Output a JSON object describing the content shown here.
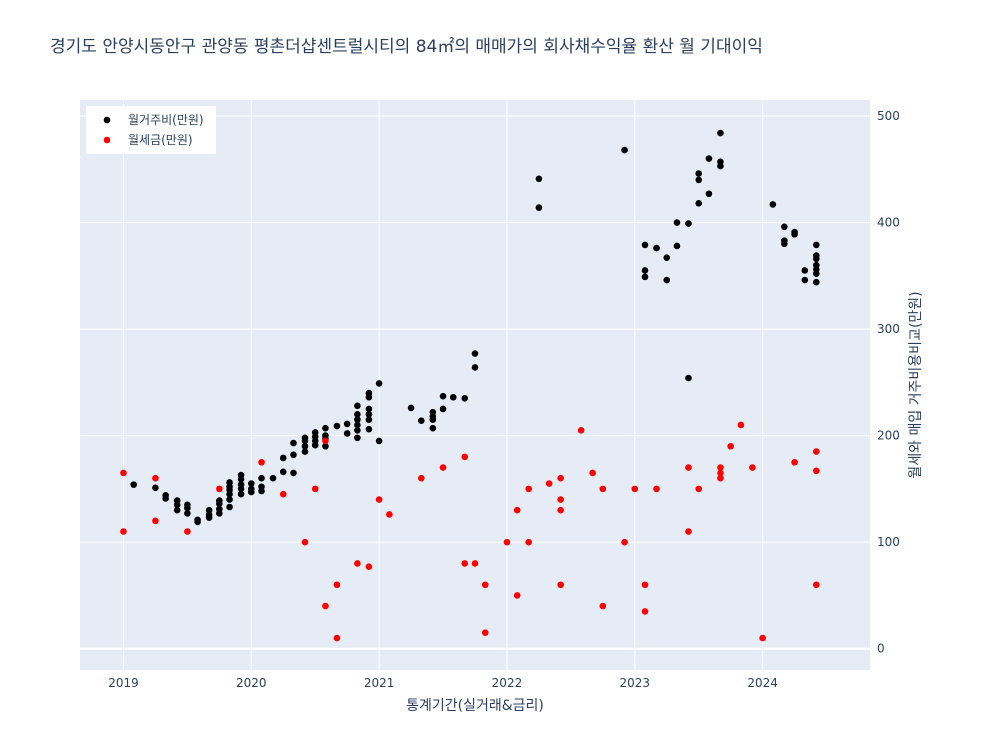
{
  "chart_data": {
    "type": "scatter",
    "title": "경기도 안양시동안구 관양동 평촌더샵센트럴시티의 84㎡의 매매가의 회사채수익율 환산 월 기대이익",
    "xlabel": "통계기간(실거래&금리)",
    "ylabel": "월세와 매입 거주비용비교(만원)",
    "x_ticks": [
      "2019",
      "2020",
      "2021",
      "2022",
      "2023",
      "2024"
    ],
    "y_ticks": [
      0,
      100,
      200,
      300,
      400,
      500
    ],
    "xlim": [
      2018.66,
      2024.84
    ],
    "ylim": [
      -20,
      515
    ],
    "legend_position": "top-left",
    "colors": {
      "plot_bg": "#e5ecf6",
      "grid": "#ffffff"
    },
    "series": [
      {
        "name": "월거주비(만원)",
        "color": "#000000",
        "points": [
          [
            2019.08,
            154
          ],
          [
            2019.25,
            151
          ],
          [
            2019.33,
            141
          ],
          [
            2019.33,
            144
          ],
          [
            2019.42,
            139
          ],
          [
            2019.42,
            135
          ],
          [
            2019.42,
            130
          ],
          [
            2019.5,
            127
          ],
          [
            2019.5,
            132
          ],
          [
            2019.5,
            135
          ],
          [
            2019.58,
            121
          ],
          [
            2019.58,
            119
          ],
          [
            2019.67,
            126
          ],
          [
            2019.67,
            130
          ],
          [
            2019.67,
            123
          ],
          [
            2019.75,
            127
          ],
          [
            2019.75,
            131
          ],
          [
            2019.75,
            136
          ],
          [
            2019.75,
            139
          ],
          [
            2019.83,
            133
          ],
          [
            2019.83,
            140
          ],
          [
            2019.83,
            145
          ],
          [
            2019.83,
            149
          ],
          [
            2019.83,
            152
          ],
          [
            2019.83,
            156
          ],
          [
            2019.92,
            145
          ],
          [
            2019.92,
            150
          ],
          [
            2019.92,
            154
          ],
          [
            2019.92,
            159
          ],
          [
            2019.92,
            163
          ],
          [
            2020.0,
            147
          ],
          [
            2020.0,
            150
          ],
          [
            2020.0,
            155
          ],
          [
            2020.08,
            148
          ],
          [
            2020.08,
            152
          ],
          [
            2020.08,
            160
          ],
          [
            2020.17,
            160
          ],
          [
            2020.25,
            179
          ],
          [
            2020.25,
            166
          ],
          [
            2020.33,
            165
          ],
          [
            2020.33,
            182
          ],
          [
            2020.33,
            193
          ],
          [
            2020.42,
            185
          ],
          [
            2020.42,
            190
          ],
          [
            2020.42,
            195
          ],
          [
            2020.42,
            198
          ],
          [
            2020.5,
            191
          ],
          [
            2020.5,
            195
          ],
          [
            2020.5,
            199
          ],
          [
            2020.5,
            203
          ],
          [
            2020.58,
            190
          ],
          [
            2020.58,
            197
          ],
          [
            2020.58,
            200
          ],
          [
            2020.58,
            207
          ],
          [
            2020.67,
            209
          ],
          [
            2020.75,
            202
          ],
          [
            2020.75,
            211
          ],
          [
            2020.83,
            198
          ],
          [
            2020.83,
            205
          ],
          [
            2020.83,
            210
          ],
          [
            2020.83,
            215
          ],
          [
            2020.83,
            220
          ],
          [
            2020.83,
            228
          ],
          [
            2020.92,
            206
          ],
          [
            2020.92,
            215
          ],
          [
            2020.92,
            220
          ],
          [
            2020.92,
            225
          ],
          [
            2020.92,
            236
          ],
          [
            2020.92,
            240
          ],
          [
            2021.0,
            195
          ],
          [
            2021.0,
            249
          ],
          [
            2021.25,
            226
          ],
          [
            2021.33,
            214
          ],
          [
            2021.42,
            207
          ],
          [
            2021.42,
            215
          ],
          [
            2021.42,
            218
          ],
          [
            2021.42,
            222
          ],
          [
            2021.5,
            225
          ],
          [
            2021.5,
            237
          ],
          [
            2021.58,
            236
          ],
          [
            2021.67,
            235
          ],
          [
            2021.75,
            264
          ],
          [
            2021.75,
            277
          ],
          [
            2022.25,
            441
          ],
          [
            2022.25,
            414
          ],
          [
            2022.92,
            468
          ],
          [
            2023.08,
            355
          ],
          [
            2023.08,
            349
          ],
          [
            2023.08,
            379
          ],
          [
            2023.17,
            376
          ],
          [
            2023.25,
            367
          ],
          [
            2023.25,
            346
          ],
          [
            2023.33,
            378
          ],
          [
            2023.33,
            400
          ],
          [
            2023.42,
            399
          ],
          [
            2023.42,
            254
          ],
          [
            2023.5,
            418
          ],
          [
            2023.5,
            440
          ],
          [
            2023.5,
            446
          ],
          [
            2023.58,
            427
          ],
          [
            2023.58,
            460
          ],
          [
            2023.67,
            453
          ],
          [
            2023.67,
            457
          ],
          [
            2023.67,
            484
          ],
          [
            2024.08,
            417
          ],
          [
            2024.17,
            396
          ],
          [
            2024.17,
            380
          ],
          [
            2024.17,
            383
          ],
          [
            2024.25,
            389
          ],
          [
            2024.25,
            391
          ],
          [
            2024.33,
            346
          ],
          [
            2024.33,
            355
          ],
          [
            2024.42,
            344
          ],
          [
            2024.42,
            352
          ],
          [
            2024.42,
            356
          ],
          [
            2024.42,
            360
          ],
          [
            2024.42,
            366
          ],
          [
            2024.42,
            369
          ],
          [
            2024.42,
            379
          ]
        ]
      },
      {
        "name": "월세금(만원)",
        "color": "#ff0000",
        "points": [
          [
            2019.0,
            165
          ],
          [
            2019.0,
            110
          ],
          [
            2019.25,
            160
          ],
          [
            2019.25,
            120
          ],
          [
            2019.5,
            110
          ],
          [
            2019.75,
            150
          ],
          [
            2020.08,
            175
          ],
          [
            2020.25,
            145
          ],
          [
            2020.42,
            100
          ],
          [
            2020.5,
            150
          ],
          [
            2020.58,
            40
          ],
          [
            2020.58,
            195
          ],
          [
            2020.67,
            10
          ],
          [
            2020.67,
            60
          ],
          [
            2020.83,
            80
          ],
          [
            2020.92,
            77
          ],
          [
            2021.0,
            140
          ],
          [
            2021.08,
            126
          ],
          [
            2021.33,
            160
          ],
          [
            2021.5,
            170
          ],
          [
            2021.67,
            180
          ],
          [
            2021.67,
            80
          ],
          [
            2021.75,
            80
          ],
          [
            2021.83,
            60
          ],
          [
            2021.83,
            15
          ],
          [
            2022.0,
            100
          ],
          [
            2022.08,
            130
          ],
          [
            2022.08,
            50
          ],
          [
            2022.17,
            150
          ],
          [
            2022.17,
            100
          ],
          [
            2022.33,
            155
          ],
          [
            2022.42,
            160
          ],
          [
            2022.42,
            140
          ],
          [
            2022.42,
            130
          ],
          [
            2022.42,
            60
          ],
          [
            2022.58,
            205
          ],
          [
            2022.67,
            165
          ],
          [
            2022.75,
            150
          ],
          [
            2022.75,
            40
          ],
          [
            2022.92,
            100
          ],
          [
            2023.0,
            150
          ],
          [
            2023.08,
            60
          ],
          [
            2023.08,
            35
          ],
          [
            2023.17,
            150
          ],
          [
            2023.42,
            170
          ],
          [
            2023.42,
            110
          ],
          [
            2023.5,
            150
          ],
          [
            2023.67,
            170
          ],
          [
            2023.67,
            165
          ],
          [
            2023.67,
            160
          ],
          [
            2023.75,
            190
          ],
          [
            2023.83,
            210
          ],
          [
            2023.92,
            170
          ],
          [
            2024.0,
            10
          ],
          [
            2024.25,
            175
          ],
          [
            2024.42,
            185
          ],
          [
            2024.42,
            167
          ],
          [
            2024.42,
            60
          ]
        ]
      }
    ]
  }
}
